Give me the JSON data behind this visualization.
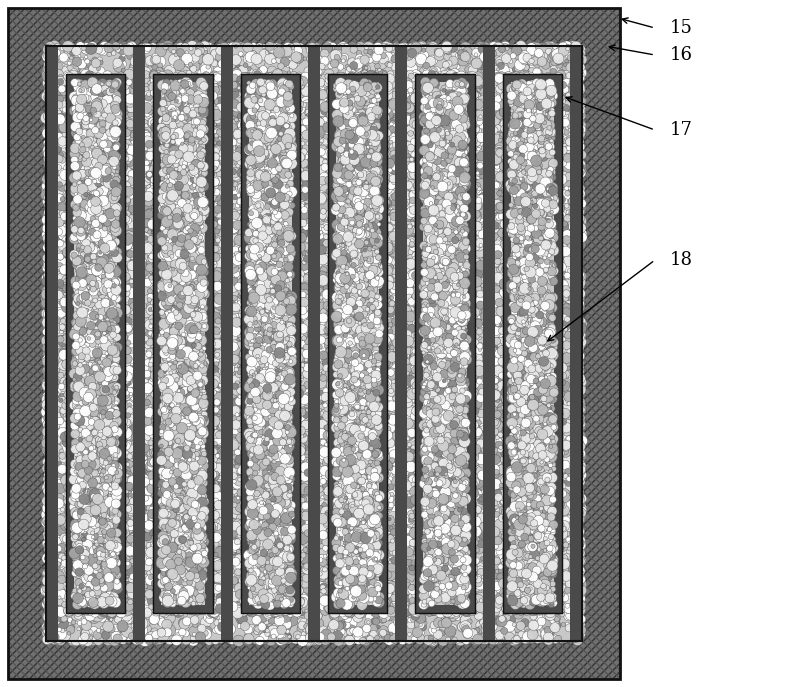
{
  "fig_width": 8.0,
  "fig_height": 6.87,
  "dpi": 100,
  "bg_color": "#ffffff",
  "labels": [
    "15",
    "16",
    "17",
    "18"
  ],
  "label_fontsize": 13,
  "num_channels": 6
}
